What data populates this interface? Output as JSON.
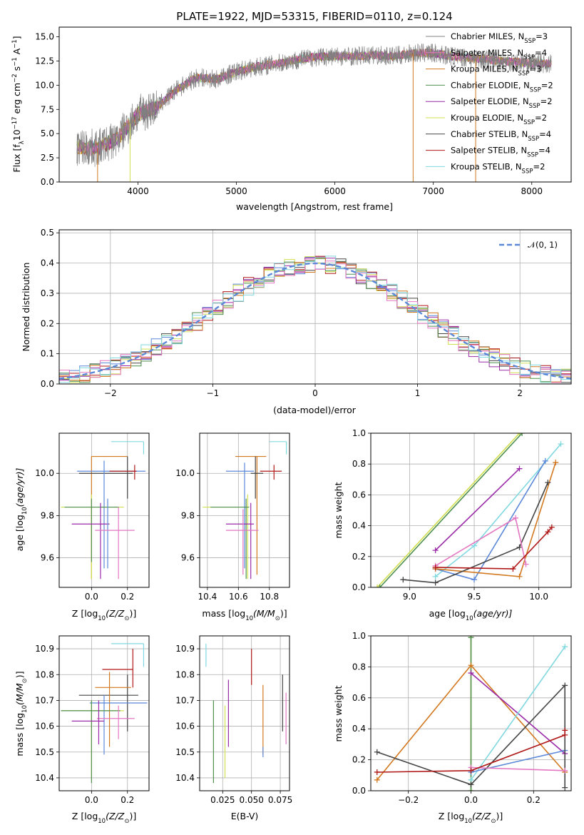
{
  "colors": {
    "chabrier_miles": "#808080",
    "salpeter_miles": "#e377c2",
    "kroupa_miles": "#d2781e",
    "chabrier_elodie": "#4f8f4f",
    "salpeter_elodie": "#9a2aa8",
    "kroupa_elodie": "#d0e050",
    "chabrier_stelib": "#444444",
    "salpeter_stelib": "#b01818",
    "kroupa_stelib": "#80d8e0",
    "model_blue": "#5b88d8"
  },
  "chart_data": [
    {
      "id": "spectrum",
      "type": "line",
      "title": "PLATE=1922, MJD=53315, FIBERID=0110, z=0.124",
      "xlabel": "wavelength [Angstrom, rest frame]",
      "ylabel": "Flux [f",
      "ylabel_sub": "λ",
      "ylabel_rest": "10",
      "ylabel_exp1": "−17",
      "ylabel_unit": " erg cm",
      "ylabel_exp2": "−2",
      "ylabel_unit2": " s",
      "ylabel_exp3": "−1",
      "ylabel_unit3": " A",
      "ylabel_exp4": "−1",
      "ylabel_end": "]",
      "xlim": [
        3200,
        8400
      ],
      "ylim": [
        0,
        16
      ],
      "xticks": [
        4000,
        5000,
        6000,
        7000,
        8000
      ],
      "yticks": [
        0.0,
        2.5,
        5.0,
        7.5,
        10.0,
        12.5,
        15.0
      ],
      "continuum_x": [
        3400,
        3600,
        3800,
        4000,
        4200,
        4400,
        4600,
        4800,
        5000,
        5200,
        5400,
        5600,
        5800,
        6000,
        6200,
        6400,
        6600,
        6800,
        7000,
        7200,
        7400,
        7600,
        7800,
        8000,
        8200
      ],
      "continuum_y": [
        3.6,
        3.5,
        4.6,
        7.0,
        7.8,
        9.6,
        10.8,
        10.6,
        11.4,
        11.9,
        12.2,
        12.6,
        12.9,
        13.0,
        13.0,
        13.1,
        13.0,
        13.3,
        13.3,
        13.0,
        12.8,
        12.6,
        12.4,
        12.3,
        12.2
      ],
      "legend": [
        {
          "prefix": "Chabrier MILES, N",
          "sub": "SSP",
          "suffix": "=3",
          "color_key": "chabrier_miles"
        },
        {
          "prefix": "Salpeter MILES, N",
          "sub": "SSP",
          "suffix": "=4",
          "color_key": "salpeter_miles"
        },
        {
          "prefix": "Kroupa MILES, N",
          "sub": "SSP",
          "suffix": "=3",
          "color_key": "kroupa_miles"
        },
        {
          "prefix": "Chabrier ELODIE, N",
          "sub": "SSP",
          "suffix": "=2",
          "color_key": "chabrier_elodie"
        },
        {
          "prefix": "Salpeter ELODIE, N",
          "sub": "SSP",
          "suffix": "=2",
          "color_key": "salpeter_elodie"
        },
        {
          "prefix": "Kroupa ELODIE, N",
          "sub": "SSP",
          "suffix": "=2",
          "color_key": "kroupa_elodie"
        },
        {
          "prefix": "Chabrier STELIB, N",
          "sub": "SSP",
          "suffix": "=4",
          "color_key": "chabrier_stelib"
        },
        {
          "prefix": "Salpeter STELIB, N",
          "sub": "SSP",
          "suffix": "=4",
          "color_key": "salpeter_stelib"
        },
        {
          "prefix": "Kroupa STELIB, N",
          "sub": "SSP",
          "suffix": "=2",
          "color_key": "kroupa_stelib"
        }
      ]
    },
    {
      "id": "residuals",
      "type": "area",
      "xlabel": "(data-model)/error",
      "ylabel": "Normed distribution",
      "xlim": [
        -2.5,
        2.5
      ],
      "ylim": [
        0,
        0.51
      ],
      "xticks": [
        -2,
        -1,
        0,
        1,
        2
      ],
      "yticks": [
        0.0,
        0.1,
        0.2,
        0.3,
        0.4,
        0.5
      ],
      "grid": true,
      "legend_label": "𝒩(0, 1)",
      "legend_placement": "top-right",
      "bin_start": -2.6,
      "bin_width": 0.1
    },
    {
      "id": "age_vs_z",
      "type": "scatter",
      "xlabel_main": "Z [log",
      "xlabel_sub": "10",
      "xlabel_end": "(Z/Z",
      "xlabel_sun": "⊙",
      "xlabel_close": ")]",
      "ylabel_main": "age  [log",
      "ylabel_sub": "10",
      "ylabel_end": "(age/yr)]",
      "xlim": [
        -0.18,
        0.32
      ],
      "ylim": [
        9.46,
        10.19
      ],
      "xticks": [
        0.0,
        0.2
      ],
      "yticks": [
        9.6,
        9.8,
        10.0
      ],
      "grid": true
    },
    {
      "id": "age_vs_mass",
      "type": "scatter",
      "xlabel_main": "mass [log",
      "xlabel_sub": "10",
      "xlabel_end": "(M/M",
      "xlabel_sun": "⊙",
      "xlabel_close": ")]",
      "xlim": [
        10.35,
        10.93
      ],
      "ylim": [
        9.46,
        10.19
      ],
      "xticks": [
        10.4,
        10.6,
        10.8
      ],
      "yticks": [
        9.6,
        9.8,
        10.0
      ],
      "grid": true
    },
    {
      "id": "weight_vs_age",
      "type": "line",
      "xlabel_main": "age  [log",
      "xlabel_sub": "10",
      "xlabel_end": "(age/yr)]",
      "ylabel": "mass weight",
      "xlim": [
        8.7,
        10.25
      ],
      "ylim": [
        0,
        1.0
      ],
      "xticks": [
        9.0,
        9.5,
        10.0
      ],
      "yticks": [
        0.0,
        0.2,
        0.4,
        0.6,
        0.8,
        1.0
      ],
      "grid": true,
      "series": [
        {
          "color_key": "kroupa_elodie",
          "x": [
            8.75,
            9.85
          ],
          "y": [
            0.0,
            1.0
          ]
        },
        {
          "color_key": "chabrier_elodie",
          "x": [
            8.77,
            9.87
          ],
          "y": [
            0.0,
            1.0
          ]
        },
        {
          "color_key": "salpeter_elodie",
          "x": [
            9.2,
            9.85
          ],
          "y": [
            0.24,
            0.77
          ]
        },
        {
          "color_key": "kroupa_stelib",
          "x": [
            9.2,
            9.5,
            10.17
          ],
          "y": [
            0.07,
            0.27,
            0.93
          ]
        },
        {
          "color_key": "model_blue",
          "x": [
            9.2,
            9.5,
            10.05
          ],
          "y": [
            0.12,
            0.05,
            0.82
          ]
        },
        {
          "color_key": "kroupa_miles",
          "x": [
            9.2,
            9.85,
            10.13
          ],
          "y": [
            0.12,
            0.07,
            0.81
          ]
        },
        {
          "color_key": "chabrier_stelib",
          "x": [
            8.95,
            9.2,
            9.85,
            10.07
          ],
          "y": [
            0.05,
            0.03,
            0.26,
            0.68
          ]
        },
        {
          "color_key": "salpeter_miles",
          "x": [
            9.2,
            9.82,
            9.9
          ],
          "y": [
            0.14,
            0.45,
            0.15
          ]
        },
        {
          "color_key": "salpeter_stelib",
          "x": [
            9.2,
            9.8,
            10.07,
            10.1
          ],
          "y": [
            0.13,
            0.12,
            0.36,
            0.39
          ]
        }
      ]
    },
    {
      "id": "mass_vs_z",
      "type": "scatter",
      "xlabel_main": "Z [log",
      "xlabel_sub": "10",
      "xlabel_end": "(Z/Z",
      "xlabel_sun": "⊙",
      "xlabel_close": ")]",
      "ylabel_main": "mass [log",
      "ylabel_sub": "10",
      "ylabel_end": "(M/M",
      "ylabel_sun": "⊙",
      "ylabel_close": ")]",
      "xlim": [
        -0.18,
        0.32
      ],
      "ylim": [
        10.35,
        10.95
      ],
      "xticks": [
        0.0,
        0.2
      ],
      "yticks": [
        10.4,
        10.5,
        10.6,
        10.7,
        10.8,
        10.9
      ],
      "grid": true
    },
    {
      "id": "mass_vs_ebv",
      "type": "scatter",
      "xlabel": "E(B-V)",
      "xlim": [
        0.005,
        0.083
      ],
      "ylim": [
        10.35,
        10.95
      ],
      "xticks": [
        0.025,
        0.05,
        0.075
      ],
      "xtick_labels": [
        "0.025",
        "0.050",
        "0.075"
      ],
      "yticks": [
        10.4,
        10.5,
        10.6,
        10.7,
        10.8,
        10.9
      ],
      "grid": true
    },
    {
      "id": "weight_vs_z",
      "type": "line",
      "xlabel_main": "Z [log",
      "xlabel_sub": "10",
      "xlabel_end": "(Z/Z",
      "xlabel_sun": "⊙",
      "xlabel_close": ")]",
      "ylabel": "mass weight",
      "xlim": [
        -0.32,
        0.32
      ],
      "ylim": [
        0,
        1.0
      ],
      "xticks": [
        -0.2,
        0.0,
        0.2
      ],
      "xtick_labels": [
        "−0.2",
        "0.0",
        "0.2"
      ],
      "yticks": [
        0.0,
        0.2,
        0.4,
        0.6,
        0.8,
        1.0
      ],
      "grid": true,
      "series": [
        {
          "color_key": "kroupa_elodie",
          "x": [
            0.0,
            0.0
          ],
          "y": [
            0.0,
            1.0
          ]
        },
        {
          "color_key": "chabrier_elodie",
          "x": [
            0.0,
            0.0
          ],
          "y": [
            0.0,
            0.99
          ]
        },
        {
          "color_key": "kroupa_miles",
          "x": [
            -0.3,
            0.0,
            0.3
          ],
          "y": [
            0.07,
            0.81,
            0.12
          ]
        },
        {
          "color_key": "salpeter_elodie",
          "x": [
            0.0,
            0.3
          ],
          "y": [
            0.76,
            0.24
          ]
        },
        {
          "color_key": "kroupa_stelib",
          "x": [
            0.0,
            0.3
          ],
          "y": [
            0.07,
            0.93
          ]
        },
        {
          "color_key": "model_blue",
          "x": [
            0.0,
            0.3
          ],
          "y": [
            0.12,
            0.26
          ]
        },
        {
          "color_key": "chabrier_stelib",
          "x": [
            -0.3,
            0.0,
            0.3,
            0.3
          ],
          "y": [
            0.25,
            0.04,
            0.68,
            0.02
          ]
        },
        {
          "color_key": "salpeter_miles",
          "x": [
            0.0,
            0.3
          ],
          "y": [
            0.15,
            0.13
          ]
        },
        {
          "color_key": "salpeter_stelib",
          "x": [
            -0.3,
            0.0,
            0.3,
            0.3
          ],
          "y": [
            0.12,
            0.13,
            0.36,
            0.39
          ]
        }
      ]
    }
  ]
}
